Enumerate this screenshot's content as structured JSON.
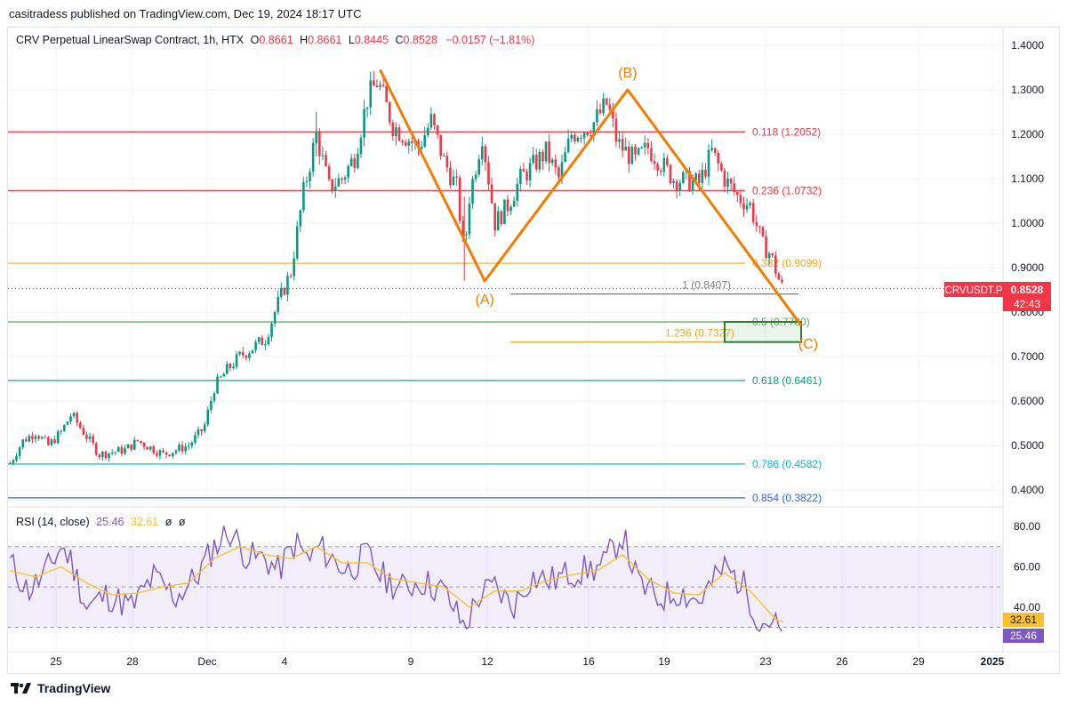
{
  "caption": "casitradess published on TradingView.com, Dec 19, 2024 18:17 UTC",
  "header": {
    "symbol": "CRV Perpetual LinearSwap Contract, 1h, HTX",
    "o_label": "O",
    "o_value": "0.8661",
    "h_label": "H",
    "h_value": "0.8661",
    "l_label": "L",
    "l_value": "0.8445",
    "c_label": "C",
    "c_value": "0.8528",
    "change": "−0.0157 (−1.81%)"
  },
  "price_tag": {
    "symbol": "CRVUSDT.P",
    "price": "0.8528",
    "countdown": "42:43"
  },
  "rsi_header": {
    "title": "RSI (14, close)",
    "rsi": "25.46",
    "ma": "32.61",
    "x1": "ø",
    "x2": "ø"
  },
  "rsi_tags": {
    "ma": "32.61",
    "rsi": "25.46"
  },
  "brand": "TradingView",
  "colors": {
    "down": "#f23645",
    "up": "#089981",
    "wave": "#f57c00",
    "rsi": "#7e57c2",
    "rsi_ma": "#fbc02d"
  },
  "chart_data": [
    {
      "type": "candlestick",
      "title": "CRV Perpetual LinearSwap Contract, 1h, HTX",
      "x_ticks": [
        "25",
        "28",
        "Dec",
        "4",
        "9",
        "12",
        "16",
        "19",
        "23",
        "26",
        "29",
        "2025"
      ],
      "y_ticks": [
        "1.4000",
        "1.3000",
        "1.2000",
        "1.1000",
        "1.0000",
        "0.9000",
        "0.8000",
        "0.7000",
        "0.6000",
        "0.5000",
        "0.4000"
      ],
      "ylim": [
        0.38,
        1.44
      ],
      "last_price": 0.8528,
      "path_points": [
        {
          "d": 0,
          "p": 0.46
        },
        {
          "d": 0.5,
          "p": 0.51
        },
        {
          "d": 1,
          "p": 0.53
        },
        {
          "d": 1.5,
          "p": 0.5
        },
        {
          "d": 2,
          "p": 0.53
        },
        {
          "d": 2.4,
          "p": 0.57
        },
        {
          "d": 3,
          "p": 0.52
        },
        {
          "d": 3.5,
          "p": 0.48
        },
        {
          "d": 4.5,
          "p": 0.49
        },
        {
          "d": 5,
          "p": 0.51
        },
        {
          "d": 6,
          "p": 0.48
        },
        {
          "d": 7,
          "p": 0.5
        },
        {
          "d": 7.6,
          "p": 0.54
        },
        {
          "d": 8,
          "p": 0.63
        },
        {
          "d": 8.5,
          "p": 0.67
        },
        {
          "d": 9,
          "p": 0.7
        },
        {
          "d": 9.5,
          "p": 0.72
        },
        {
          "d": 10,
          "p": 0.74
        },
        {
          "d": 10.5,
          "p": 0.82
        },
        {
          "d": 11,
          "p": 0.89
        },
        {
          "d": 11.5,
          "p": 1.07
        },
        {
          "d": 12,
          "p": 1.2
        },
        {
          "d": 12.5,
          "p": 1.08
        },
        {
          "d": 13,
          "p": 1.1
        },
        {
          "d": 13.5,
          "p": 1.15
        },
        {
          "d": 14,
          "p": 1.28
        },
        {
          "d": 14.4,
          "p": 1.32
        },
        {
          "d": 15,
          "p": 1.22
        },
        {
          "d": 16,
          "p": 1.17
        },
        {
          "d": 16.5,
          "p": 1.23
        },
        {
          "d": 17,
          "p": 1.14
        },
        {
          "d": 17.5,
          "p": 1.08
        },
        {
          "d": 17.8,
          "p": 0.93
        },
        {
          "d": 18,
          "p": 1.06
        },
        {
          "d": 18.5,
          "p": 1.2
        },
        {
          "d": 19,
          "p": 1.0
        },
        {
          "d": 19.5,
          "p": 1.04
        },
        {
          "d": 20,
          "p": 1.1
        },
        {
          "d": 21,
          "p": 1.16
        },
        {
          "d": 21.5,
          "p": 1.1
        },
        {
          "d": 22,
          "p": 1.2
        },
        {
          "d": 22.8,
          "p": 1.22
        },
        {
          "d": 23.4,
          "p": 1.27
        },
        {
          "d": 23.8,
          "p": 1.18
        },
        {
          "d": 24.5,
          "p": 1.14
        },
        {
          "d": 25,
          "p": 1.17
        },
        {
          "d": 26,
          "p": 1.1
        },
        {
          "d": 27,
          "p": 1.09
        },
        {
          "d": 27.5,
          "p": 1.16
        },
        {
          "d": 28,
          "p": 1.1
        },
        {
          "d": 28.5,
          "p": 1.06
        },
        {
          "d": 29,
          "p": 1.04
        },
        {
          "d": 29.5,
          "p": 0.95
        },
        {
          "d": 29.8,
          "p": 0.93
        },
        {
          "d": 30.2,
          "p": 0.86
        },
        {
          "d": 30.3,
          "p": 0.853
        }
      ],
      "fib_levels": [
        {
          "label": "0.118 (1.2052)",
          "value": 1.2052,
          "color": "#f23645"
        },
        {
          "label": "0.236 (1.0732)",
          "value": 1.0732,
          "color": "#f23645"
        },
        {
          "label": "0.382 (0.9099)",
          "value": 0.9099,
          "color": "#f5a623"
        },
        {
          "label": "0.5 (0.7780)",
          "value": 0.778,
          "color": "#4caf50"
        },
        {
          "label": "0.618 (0.6461)",
          "value": 0.6461,
          "color": "#089981"
        },
        {
          "label": "0.786 (0.4582)",
          "value": 0.4582,
          "color": "#00bcd4"
        },
        {
          "label": "0.854 (0.3822)",
          "value": 0.3822,
          "color": "#2962ff"
        }
      ],
      "extension_levels": [
        {
          "label": "1 (0.8407)",
          "value": 0.8407,
          "color": "#787b86"
        },
        {
          "label": "1.236 (0.7327)",
          "value": 0.7327,
          "color": "#f5a623"
        }
      ],
      "target_zone": {
        "from": 0.7327,
        "to": 0.778
      },
      "wave_points": [
        {
          "d": 14.5,
          "p": 1.345,
          "label": ""
        },
        {
          "d": 18.6,
          "p": 0.87,
          "label": "(A)"
        },
        {
          "d": 24.2,
          "p": 1.3,
          "label": "(B)"
        },
        {
          "d": 31.0,
          "p": 0.77,
          "label": "(C)"
        }
      ]
    },
    {
      "type": "line",
      "title": "RSI (14, close)",
      "y_ticks": [
        "80.00",
        "60.00",
        "40.00"
      ],
      "ylim": [
        12,
        85
      ],
      "bands": {
        "upper": 70,
        "middle": 50,
        "lower": 30
      },
      "series": [
        {
          "name": "RSI",
          "last": 25.46,
          "points": [
            {
              "d": 0,
              "v": 62
            },
            {
              "d": 0.7,
              "v": 48
            },
            {
              "d": 1.3,
              "v": 55
            },
            {
              "d": 2,
              "v": 70
            },
            {
              "d": 2.4,
              "v": 63
            },
            {
              "d": 3,
              "v": 40
            },
            {
              "d": 3.8,
              "v": 46
            },
            {
              "d": 4.8,
              "v": 40
            },
            {
              "d": 5.6,
              "v": 55
            },
            {
              "d": 6.5,
              "v": 45
            },
            {
              "d": 7.3,
              "v": 55
            },
            {
              "d": 8,
              "v": 70
            },
            {
              "d": 8.6,
              "v": 78
            },
            {
              "d": 9.3,
              "v": 65
            },
            {
              "d": 10,
              "v": 64
            },
            {
              "d": 10.5,
              "v": 58
            },
            {
              "d": 11.2,
              "v": 72
            },
            {
              "d": 11.7,
              "v": 63
            },
            {
              "d": 12.1,
              "v": 70
            },
            {
              "d": 12.6,
              "v": 64
            },
            {
              "d": 13.2,
              "v": 58
            },
            {
              "d": 14,
              "v": 66
            },
            {
              "d": 14.5,
              "v": 56
            },
            {
              "d": 15.3,
              "v": 49
            },
            {
              "d": 16.1,
              "v": 53
            },
            {
              "d": 17,
              "v": 48
            },
            {
              "d": 17.8,
              "v": 30
            },
            {
              "d": 18.4,
              "v": 46
            },
            {
              "d": 19,
              "v": 50
            },
            {
              "d": 19.7,
              "v": 40
            },
            {
              "d": 20.4,
              "v": 55
            },
            {
              "d": 21.2,
              "v": 53
            },
            {
              "d": 22,
              "v": 57
            },
            {
              "d": 23.2,
              "v": 60
            },
            {
              "d": 24,
              "v": 76
            },
            {
              "d": 24.6,
              "v": 52
            },
            {
              "d": 25.4,
              "v": 44
            },
            {
              "d": 26.2,
              "v": 48
            },
            {
              "d": 27,
              "v": 43
            },
            {
              "d": 28,
              "v": 60
            },
            {
              "d": 28.8,
              "v": 50
            },
            {
              "d": 29.4,
              "v": 32
            },
            {
              "d": 29.8,
              "v": 34
            },
            {
              "d": 30.1,
              "v": 29
            },
            {
              "d": 30.3,
              "v": 25.46
            }
          ]
        },
        {
          "name": "MA",
          "last": 32.61,
          "points": [
            {
              "d": 0,
              "v": 58
            },
            {
              "d": 1,
              "v": 55
            },
            {
              "d": 2,
              "v": 60
            },
            {
              "d": 3,
              "v": 52
            },
            {
              "d": 4,
              "v": 46
            },
            {
              "d": 5,
              "v": 47
            },
            {
              "d": 6,
              "v": 50
            },
            {
              "d": 7,
              "v": 52
            },
            {
              "d": 8,
              "v": 64
            },
            {
              "d": 9,
              "v": 70
            },
            {
              "d": 10,
              "v": 66
            },
            {
              "d": 11,
              "v": 64
            },
            {
              "d": 12,
              "v": 70
            },
            {
              "d": 13,
              "v": 62
            },
            {
              "d": 14,
              "v": 62
            },
            {
              "d": 15,
              "v": 54
            },
            {
              "d": 16,
              "v": 52
            },
            {
              "d": 17,
              "v": 50
            },
            {
              "d": 18,
              "v": 40
            },
            {
              "d": 19,
              "v": 48
            },
            {
              "d": 20,
              "v": 48
            },
            {
              "d": 21,
              "v": 53
            },
            {
              "d": 22,
              "v": 56
            },
            {
              "d": 23,
              "v": 58
            },
            {
              "d": 24,
              "v": 66
            },
            {
              "d": 25,
              "v": 54
            },
            {
              "d": 26,
              "v": 47
            },
            {
              "d": 27,
              "v": 46
            },
            {
              "d": 28,
              "v": 57
            },
            {
              "d": 29,
              "v": 48
            },
            {
              "d": 30,
              "v": 34
            },
            {
              "d": 30.3,
              "v": 32.61
            }
          ]
        }
      ]
    }
  ]
}
